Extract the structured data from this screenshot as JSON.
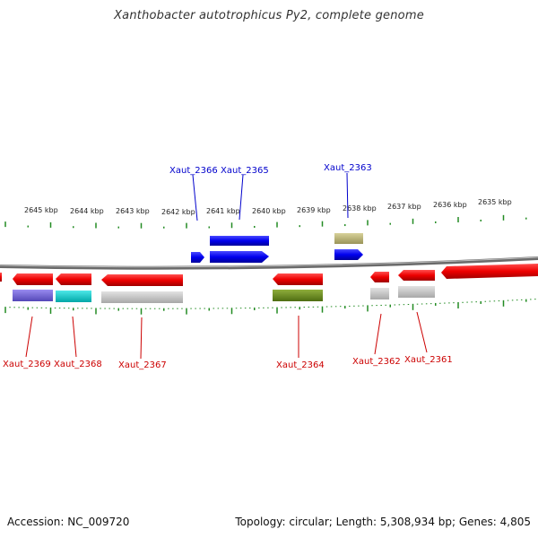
{
  "title": "Xanthobacter autotrophicus Py2, complete genome",
  "footer": {
    "accession": "Accession: NC_009720",
    "topology": "Topology: circular; Length: 5,308,934 bp; Genes: 4,805"
  },
  "colors": {
    "forward_gene": "#0000ee",
    "reverse_gene": "#ee0000",
    "backbone": "#777777",
    "tick": "#228b22",
    "label_top": "#0000cc",
    "label_bottom": "#cc0000"
  },
  "kbp_labels": [
    "2645 kbp",
    "2644 kbp",
    "2643 kbp",
    "2642 kbp",
    "2641 kbp",
    "2640 kbp",
    "2639 kbp",
    "2638 kbp",
    "2637 kbp",
    "2636 kbp",
    "2635 kbp"
  ],
  "top_genes": [
    {
      "label": "Xaut_2366"
    },
    {
      "label": "Xaut_2365"
    },
    {
      "label": "Xaut_2363"
    }
  ],
  "bottom_genes": [
    {
      "label": "Xaut_2369"
    },
    {
      "label": "Xaut_2368"
    },
    {
      "label": "Xaut_2367"
    },
    {
      "label": "Xaut_2364"
    },
    {
      "label": "Xaut_2362"
    },
    {
      "label": "Xaut_2361"
    }
  ]
}
